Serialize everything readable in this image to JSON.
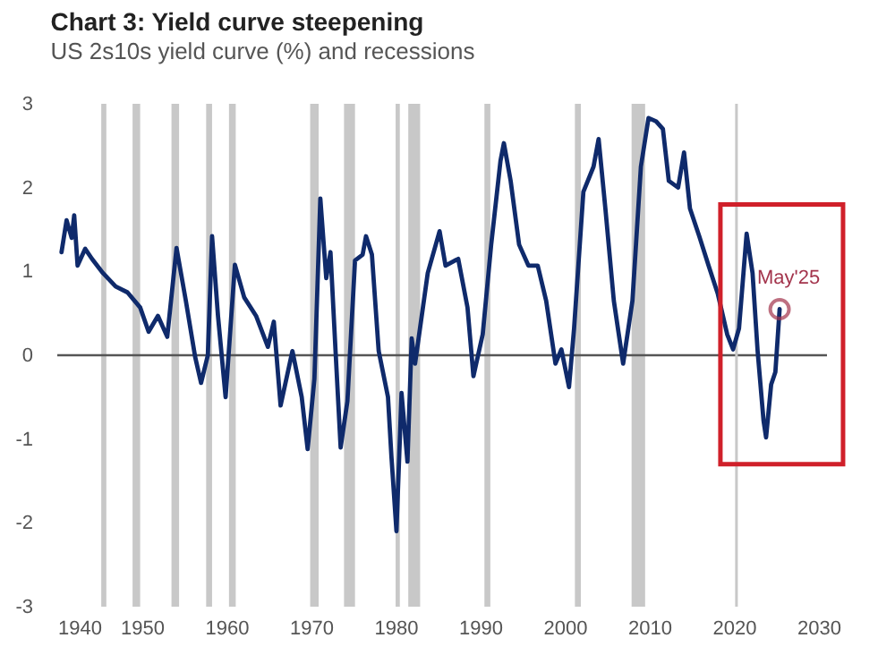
{
  "chart_data": {
    "type": "line",
    "title": "Chart 3: Yield curve steepening",
    "subtitle": "US 2s10s yield curve (%) and recessions",
    "x": [
      1940.5,
      1941.1,
      1941.7,
      1942.0,
      1942.4,
      1943.3,
      1944.1,
      1945.4,
      1946.9,
      1948.3,
      1949.8,
      1950.8,
      1951.9,
      1953.0,
      1954.1,
      1955.2,
      1956.3,
      1957.0,
      1957.8,
      1958.3,
      1959.0,
      1959.9,
      1961.0,
      1962.1,
      1963.5,
      1964.9,
      1965.6,
      1966.4,
      1967.8,
      1968.9,
      1969.6,
      1970.4,
      1971.1,
      1971.8,
      1972.3,
      1972.9,
      1973.5,
      1974.3,
      1975.2,
      1976.1,
      1976.5,
      1977.2,
      1978.0,
      1979.1,
      1979.5,
      1980.1,
      1980.7,
      1981.4,
      1981.9,
      1982.3,
      1983.8,
      1985.2,
      1985.9,
      1987.4,
      1988.5,
      1989.2,
      1990.3,
      1991.3,
      1992.4,
      1992.8,
      1993.6,
      1994.6,
      1995.7,
      1996.8,
      1997.8,
      1998.9,
      1999.6,
      2000.5,
      2001.1,
      2002.2,
      2003.4,
      2004.0,
      2004.8,
      2005.8,
      2006.9,
      2008.0,
      2009.0,
      2009.9,
      2010.8,
      2011.6,
      2012.3,
      2013.4,
      2014.1,
      2014.8,
      2015.9,
      2017.0,
      2018.1,
      2019.2,
      2019.9,
      2020.6,
      2021.5,
      2022.2,
      2022.8,
      2023.5,
      2023.8,
      2024.4,
      2024.9,
      2025.4
    ],
    "series": [
      {
        "color": "#0f2a6b",
        "values": [
          1.23,
          1.61,
          1.4,
          1.67,
          1.07,
          1.27,
          1.15,
          0.98,
          0.82,
          0.75,
          0.57,
          0.28,
          0.47,
          0.22,
          1.28,
          0.65,
          -0.02,
          -0.33,
          0.0,
          1.42,
          0.47,
          -0.5,
          1.08,
          0.69,
          0.47,
          0.1,
          0.4,
          -0.6,
          0.05,
          -0.5,
          -1.12,
          -0.28,
          1.87,
          0.92,
          1.23,
          0.05,
          -1.1,
          -0.55,
          1.13,
          1.2,
          1.42,
          1.2,
          0.05,
          -0.5,
          -1.2,
          -2.1,
          -0.45,
          -1.27,
          0.2,
          -0.1,
          0.98,
          1.48,
          1.07,
          1.15,
          0.57,
          -0.25,
          0.25,
          1.32,
          2.32,
          2.53,
          2.08,
          1.32,
          1.07,
          1.07,
          0.65,
          -0.1,
          0.07,
          -0.38,
          0.32,
          1.95,
          2.25,
          2.58,
          1.75,
          0.65,
          -0.1,
          0.65,
          2.25,
          2.83,
          2.79,
          2.7,
          2.08,
          2.0,
          2.42,
          1.75,
          1.42,
          1.07,
          0.73,
          0.25,
          0.07,
          0.32,
          1.45,
          0.98,
          0.05,
          -0.78,
          -0.98,
          -0.35,
          -0.2,
          0.55
        ]
      }
    ],
    "xlim": [
      1940,
      2031
    ],
    "xticks": [
      1940,
      1950,
      1960,
      1970,
      1980,
      1990,
      2000,
      2010,
      2020,
      2030
    ],
    "ylim": [
      -3,
      3
    ],
    "yticks": [
      -3,
      -2,
      -1,
      0,
      1,
      2,
      3
    ],
    "grid": false,
    "marker": "none",
    "line_style": "solid",
    "ref_lines": [
      {
        "axis": "y",
        "value": 0,
        "color": "#555555"
      },
      {
        "axis": "x",
        "value": 2020.3,
        "color": "#c8c8c8"
      }
    ],
    "bands": [
      {
        "axis": "x",
        "from": 1945.2,
        "to": 1945.8,
        "color": "#c8c8c8"
      },
      {
        "axis": "x",
        "from": 1948.9,
        "to": 1949.8,
        "color": "#c8c8c8"
      },
      {
        "axis": "x",
        "from": 1953.5,
        "to": 1954.4,
        "color": "#c8c8c8"
      },
      {
        "axis": "x",
        "from": 1957.6,
        "to": 1958.3,
        "color": "#c8c8c8"
      },
      {
        "axis": "x",
        "from": 1960.3,
        "to": 1961.1,
        "color": "#c8c8c8"
      },
      {
        "axis": "x",
        "from": 1969.9,
        "to": 1970.9,
        "color": "#c8c8c8"
      },
      {
        "axis": "x",
        "from": 1973.9,
        "to": 1975.2,
        "color": "#c8c8c8"
      },
      {
        "axis": "x",
        "from": 1980.0,
        "to": 1980.5,
        "color": "#c8c8c8"
      },
      {
        "axis": "x",
        "from": 1981.5,
        "to": 1982.9,
        "color": "#c8c8c8"
      },
      {
        "axis": "x",
        "from": 1990.5,
        "to": 1991.2,
        "color": "#c8c8c8"
      },
      {
        "axis": "x",
        "from": 2001.2,
        "to": 2001.9,
        "color": "#c8c8c8"
      },
      {
        "axis": "x",
        "from": 2007.9,
        "to": 2009.5,
        "color": "#c8c8c8"
      }
    ],
    "annotations": [
      {
        "text": "May'25",
        "x": 2025.4,
        "y": 0.55
      }
    ]
  }
}
